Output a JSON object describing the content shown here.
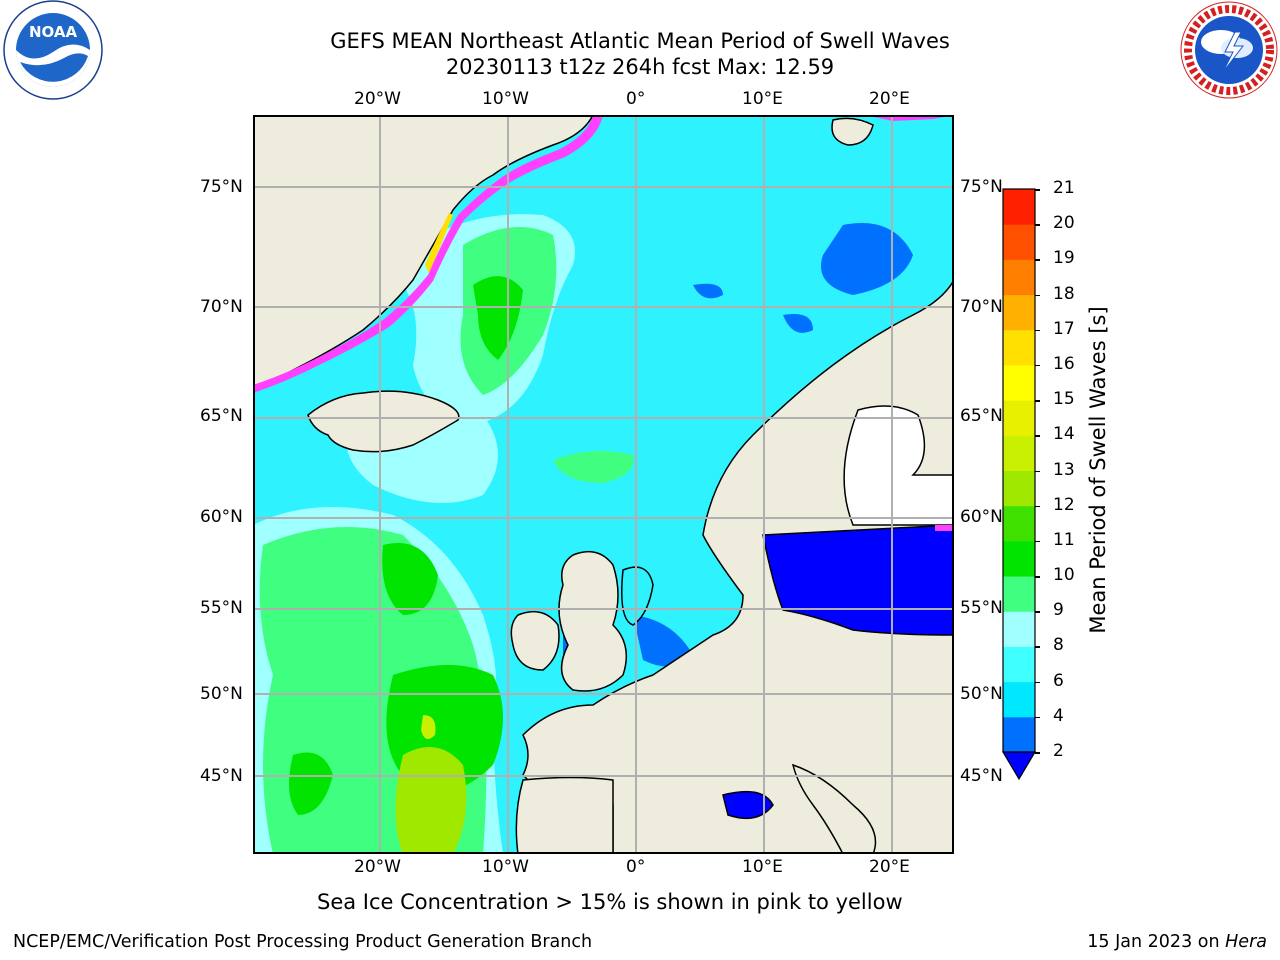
{
  "header": {
    "title_line1": "GEFS MEAN Northeast Atlantic Mean Period of Swell Waves",
    "title_line2": "20230113 t12z 264h fcst   Max: 12.59"
  },
  "logos": {
    "noaa": {
      "text": "NOAA",
      "ring_text_top": "NATIONAL OCEANIC AND ATMOSPHERIC ADMINISTRATION",
      "ring_text_bottom": "U.S. DEPARTMENT OF COMMERCE"
    },
    "nws": {
      "ring_text": "NATIONAL WEATHER SERVICE"
    }
  },
  "map": {
    "lon_labels": [
      "20°W",
      "10°W",
      "0°",
      "10°E",
      "20°E"
    ],
    "lat_labels": [
      "75°N",
      "70°N",
      "65°N",
      "60°N",
      "55°N",
      "50°N",
      "45°N"
    ],
    "colors": {
      "ocean": "#00ffff",
      "land": "#eeecdc",
      "grid": "#b0b0b0"
    }
  },
  "colorbar": {
    "label": "Mean Period of Swell Waves [s]",
    "ticks": [
      "2",
      "4",
      "6",
      "8",
      "9",
      "10",
      "11",
      "12",
      "13",
      "14",
      "15",
      "16",
      "17",
      "18",
      "19",
      "20",
      "21"
    ],
    "colors": [
      "#0070ff",
      "#00e8ff",
      "#40ffff",
      "#a0ffff",
      "#40ff80",
      "#00e400",
      "#40e000",
      "#a0e800",
      "#c8f000",
      "#e8f000",
      "#ffff00",
      "#ffe000",
      "#ffb000",
      "#ff8000",
      "#ff5000",
      "#ff2000"
    ],
    "under_color": "#0000ff"
  },
  "note": "Sea Ice Concentration > 15% is shown in pink to yellow",
  "footer": {
    "left": "NCEP/EMC/Verification Post Processing Product Generation Branch",
    "right_date": "15 Jan 2023 on ",
    "right_host": "Hera"
  }
}
